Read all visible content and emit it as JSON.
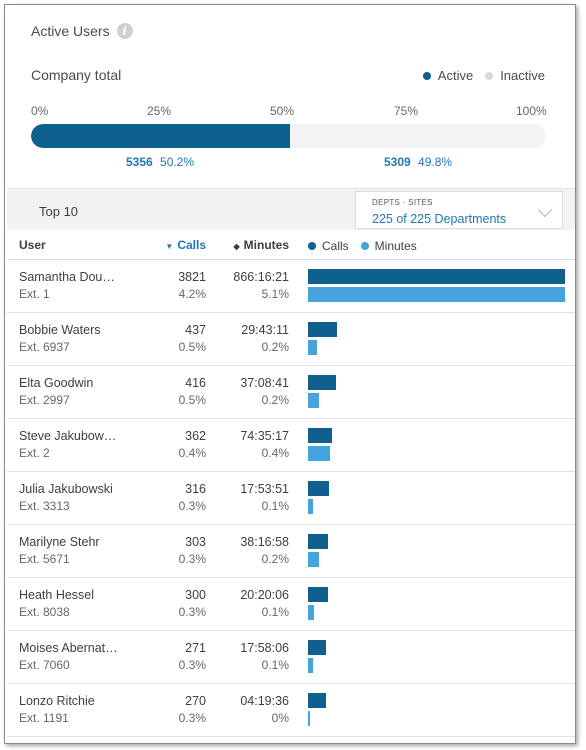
{
  "colors": {
    "active": "#0f5f8f",
    "inactive": "#d9d9d9",
    "calls": "#0f5f8f",
    "minutes": "#45a3dd",
    "link": "#1f78b4"
  },
  "header": {
    "title": "Active Users",
    "info_icon": "info-icon"
  },
  "company": {
    "label": "Company total",
    "legend_active": "Active",
    "legend_inactive": "Inactive",
    "scale": [
      "0%",
      "25%",
      "50%",
      "75%",
      "100%"
    ],
    "active_fraction": 0.502,
    "active_count": "5356",
    "active_pct": "50.2%",
    "inactive_count": "5309",
    "inactive_pct": "49.8%"
  },
  "top": {
    "label": "Top 10",
    "filter_caption": "DEPTS · SITES",
    "filter_value": "225 of 225 Departments"
  },
  "table": {
    "col_user": "User",
    "col_calls": "Calls",
    "col_minutes": "Minutes",
    "legend_calls": "Calls",
    "legend_minutes": "Minutes",
    "rows": [
      {
        "name": "Samantha Dou…",
        "ext": "Ext. 1",
        "calls": "3821",
        "calls_pct": "4.2%",
        "minutes": "866:16:21",
        "minutes_pct": "5.1%",
        "calls_fraction": 1.0,
        "minutes_fraction": 1.0
      },
      {
        "name": "Bobbie Waters",
        "ext": "Ext. 6937",
        "calls": "437",
        "calls_pct": "0.5%",
        "minutes": "29:43:11",
        "minutes_pct": "0.2%",
        "calls_fraction": 0.114,
        "minutes_fraction": 0.034
      },
      {
        "name": "Elta Goodwin",
        "ext": "Ext. 2997",
        "calls": "416",
        "calls_pct": "0.5%",
        "minutes": "37:08:41",
        "minutes_pct": "0.2%",
        "calls_fraction": 0.109,
        "minutes_fraction": 0.043
      },
      {
        "name": "Steve Jakubow…",
        "ext": "Ext. 2",
        "calls": "362",
        "calls_pct": "0.4%",
        "minutes": "74:35:17",
        "minutes_pct": "0.4%",
        "calls_fraction": 0.095,
        "minutes_fraction": 0.086
      },
      {
        "name": "Julia Jakubowski",
        "ext": "Ext. 3313",
        "calls": "316",
        "calls_pct": "0.3%",
        "minutes": "17:53:51",
        "minutes_pct": "0.1%",
        "calls_fraction": 0.083,
        "minutes_fraction": 0.021
      },
      {
        "name": "Marilyne Stehr",
        "ext": "Ext. 5671",
        "calls": "303",
        "calls_pct": "0.3%",
        "minutes": "38:16:58",
        "minutes_pct": "0.2%",
        "calls_fraction": 0.079,
        "minutes_fraction": 0.044
      },
      {
        "name": "Heath Hessel",
        "ext": "Ext. 8038",
        "calls": "300",
        "calls_pct": "0.3%",
        "minutes": "20:20:06",
        "minutes_pct": "0.1%",
        "calls_fraction": 0.079,
        "minutes_fraction": 0.023
      },
      {
        "name": "Moises Abernat…",
        "ext": "Ext. 7060",
        "calls": "271",
        "calls_pct": "0.3%",
        "minutes": "17:58:06",
        "minutes_pct": "0.1%",
        "calls_fraction": 0.071,
        "minutes_fraction": 0.021
      },
      {
        "name": "Lonzo Ritchie",
        "ext": "Ext. 1191",
        "calls": "270",
        "calls_pct": "0.3%",
        "minutes": "04:19:36",
        "minutes_pct": "0%",
        "calls_fraction": 0.071,
        "minutes_fraction": 0.005
      }
    ]
  }
}
